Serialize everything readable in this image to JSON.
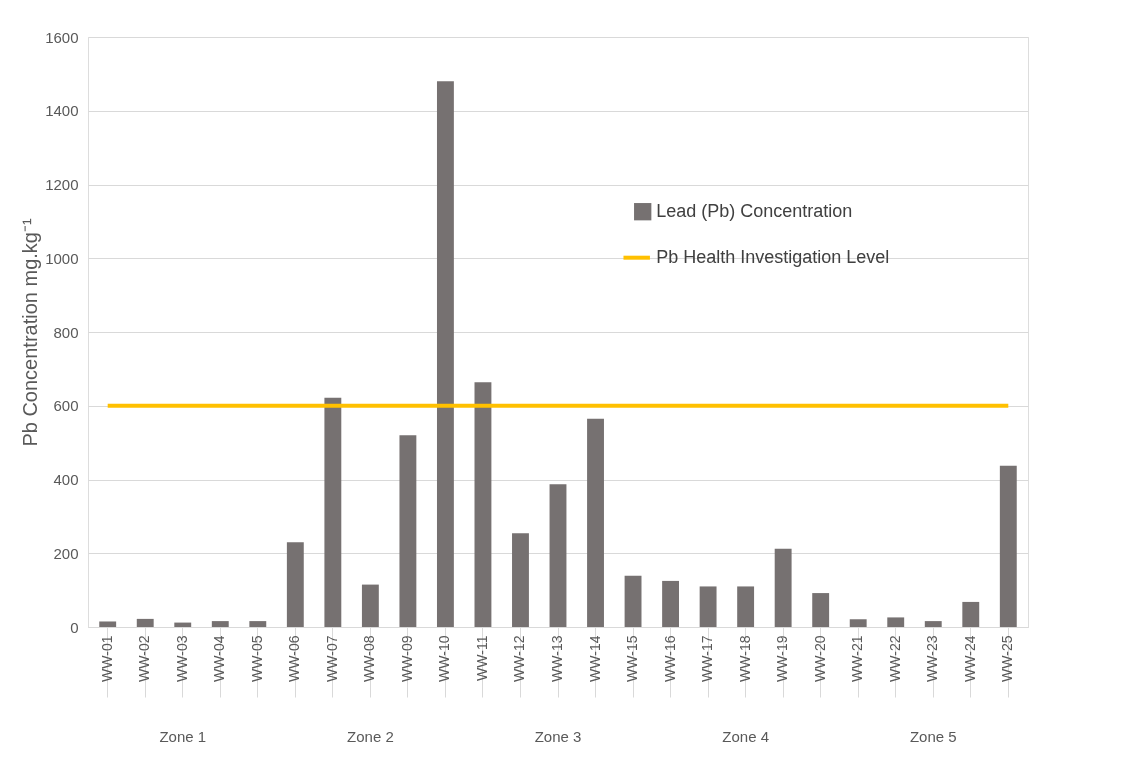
{
  "chart_data": {
    "type": "bar",
    "ylabel": "Pb Concentration mg.kg⁻¹",
    "categories": [
      "WW-01",
      "WW-02",
      "WW-03",
      "WW-04",
      "WW-05",
      "WW-06",
      "WW-07",
      "WW-08",
      "WW-09",
      "WW-10",
      "WW-11",
      "WW-12",
      "WW-13",
      "WW-14",
      "WW-15",
      "WW-16",
      "WW-17",
      "WW-18",
      "WW-19",
      "WW-20",
      "WW-21",
      "WW-22",
      "WW-23",
      "WW-24",
      "WW-25"
    ],
    "series": [
      {
        "name": "Lead (Pb) Concentration",
        "color": "#767171",
        "values": [
          15,
          22,
          12,
          16,
          16,
          230,
          622,
          115,
          520,
          1480,
          664,
          254,
          387,
          565,
          139,
          125,
          110,
          110,
          212,
          92,
          21,
          26,
          16,
          68,
          437
        ]
      }
    ],
    "ref_lines": [
      {
        "axis": "y",
        "value": 600,
        "label": "Pb Health Investigation Level",
        "color": "#ffc000"
      }
    ],
    "annotations": [
      "Zone 1",
      "Zone 2",
      "Zone 3",
      "Zone 4",
      "Zone 5"
    ],
    "ylim": [
      0,
      1600
    ],
    "yticks": [
      0,
      200,
      400,
      600,
      800,
      1000,
      1200,
      1400,
      1600
    ],
    "grid": "y",
    "legend": "top right"
  }
}
